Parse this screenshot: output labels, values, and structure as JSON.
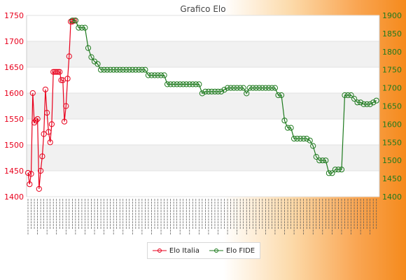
{
  "chart_data": {
    "type": "line",
    "title": "Grafico Elo",
    "left_axis": {
      "ylim": [
        1400,
        1750
      ],
      "ticks": [
        1400,
        1450,
        1500,
        1550,
        1600,
        1650,
        1700,
        1750
      ],
      "color": "#e8001c"
    },
    "right_axis": {
      "ylim": [
        1400,
        1900
      ],
      "ticks": [
        1400,
        1450,
        1500,
        1550,
        1600,
        1650,
        1700,
        1750,
        1800,
        1850,
        1900
      ],
      "color": "#1e7a1e"
    },
    "series": [
      {
        "name": "Elo Italia",
        "axis": "left",
        "color": "#e8001c",
        "x": [
          0,
          1,
          2,
          3,
          4,
          5,
          6,
          7,
          8,
          9,
          10,
          11,
          12,
          13,
          14,
          15,
          16,
          17,
          18,
          19,
          20,
          21,
          22,
          23,
          24,
          25,
          26,
          27,
          28,
          29,
          30
        ],
        "values": [
          1446,
          1424,
          1444,
          1600,
          1543,
          1547,
          1550,
          1415,
          1450,
          1478,
          1521,
          1607,
          1562,
          1525,
          1505,
          1540,
          1641,
          1641,
          1641,
          1641,
          1641,
          1625,
          1625,
          1545,
          1575,
          1628,
          1671,
          1738,
          1738,
          1740,
          1740
        ]
      },
      {
        "name": "Elo FIDE",
        "axis": "right",
        "color": "#1e7a1e",
        "x": [
          28,
          30,
          32,
          34,
          36,
          38,
          40,
          42,
          44,
          46,
          48,
          50,
          52,
          54,
          56,
          58,
          60,
          62,
          64,
          66,
          68,
          70,
          72,
          74,
          76,
          78,
          80,
          82,
          84,
          86,
          88,
          90,
          92,
          94,
          96,
          98,
          100,
          102,
          104,
          106,
          108,
          110,
          112,
          114,
          116,
          118,
          120,
          122,
          124,
          126,
          128,
          130,
          132,
          134,
          136,
          138,
          140,
          142,
          144,
          146,
          148,
          150,
          152,
          154,
          156,
          158,
          160,
          162,
          164,
          166,
          168,
          170,
          172,
          174,
          176,
          178,
          180,
          182,
          184,
          186,
          188,
          190,
          192,
          194,
          196,
          198,
          200,
          202,
          204,
          206,
          208,
          210,
          212,
          214,
          216,
          218,
          220
        ],
        "values": [
          1886,
          1886,
          1866,
          1866,
          1866,
          1810,
          1785,
          1773,
          1766,
          1750,
          1750,
          1750,
          1750,
          1750,
          1750,
          1750,
          1750,
          1750,
          1750,
          1750,
          1750,
          1750,
          1750,
          1750,
          1735,
          1735,
          1735,
          1735,
          1735,
          1735,
          1710,
          1710,
          1710,
          1710,
          1710,
          1710,
          1710,
          1710,
          1710,
          1710,
          1710,
          1685,
          1690,
          1690,
          1690,
          1690,
          1690,
          1690,
          1695,
          1700,
          1700,
          1700,
          1700,
          1700,
          1700,
          1685,
          1700,
          1700,
          1700,
          1700,
          1700,
          1700,
          1700,
          1700,
          1700,
          1680,
          1680,
          1610,
          1590,
          1590,
          1560,
          1560,
          1560,
          1560,
          1560,
          1555,
          1540,
          1510,
          1500,
          1500,
          1500,
          1465,
          1465,
          1475,
          1475,
          1475,
          1680,
          1680,
          1680,
          1670,
          1660,
          1660,
          1655,
          1655,
          1655,
          1660,
          1665
        ]
      }
    ],
    "grid": true,
    "legend": "bottom"
  }
}
